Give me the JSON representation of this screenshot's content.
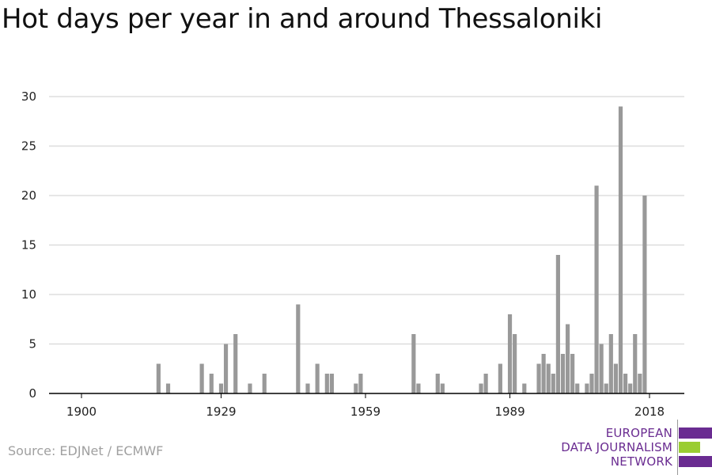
{
  "title": "Hot days per year in and around Thessaloniki",
  "source": "Source: EDJNet / ECMWF",
  "logo": {
    "lines": [
      "EUROPEAN",
      "DATA JOURNALISM",
      "NETWORK"
    ],
    "colors": {
      "purple": "#6a2c91",
      "green": "#9acd32"
    }
  },
  "colors": {
    "bar": "#999999",
    "grid": "#dddddd",
    "axis": "#000000"
  },
  "chart_data": {
    "type": "bar",
    "title": "Hot days per year in and around Thessaloniki",
    "xlabel": "",
    "ylabel": "",
    "xlim": [
      1900,
      2018
    ],
    "ylim": [
      0,
      30
    ],
    "x_ticks": [
      1900,
      1929,
      1959,
      1989,
      2018
    ],
    "y_ticks": [
      0,
      5,
      10,
      15,
      20,
      25,
      30
    ],
    "grid": true,
    "x": [
      1916,
      1918,
      1925,
      1927,
      1929,
      1930,
      1932,
      1935,
      1938,
      1945,
      1947,
      1949,
      1951,
      1952,
      1957,
      1958,
      1969,
      1970,
      1974,
      1975,
      1983,
      1984,
      1987,
      1989,
      1990,
      1992,
      1995,
      1996,
      1997,
      1998,
      1999,
      2000,
      2001,
      2002,
      2003,
      2005,
      2006,
      2007,
      2008,
      2009,
      2010,
      2011,
      2012,
      2013,
      2014,
      2015,
      2016,
      2017,
      2018
    ],
    "values": [
      3,
      1,
      3,
      2,
      1,
      5,
      6,
      1,
      2,
      9,
      1,
      3,
      2,
      2,
      1,
      2,
      6,
      1,
      2,
      1,
      1,
      2,
      3,
      8,
      6,
      1,
      3,
      4,
      3,
      2,
      14,
      4,
      7,
      4,
      1,
      1,
      2,
      21,
      5,
      1,
      6,
      3,
      29,
      2,
      1,
      6,
      2,
      20,
      0
    ]
  }
}
